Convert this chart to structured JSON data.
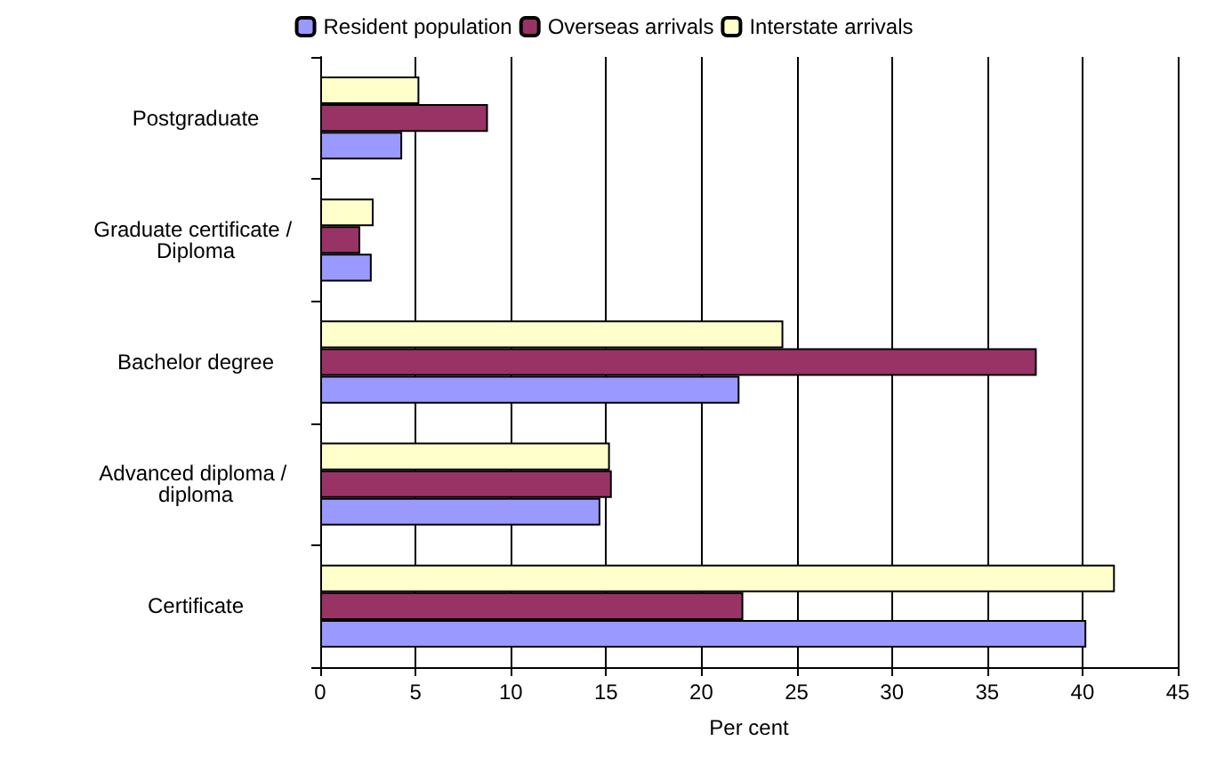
{
  "chart_data": {
    "type": "bar",
    "orientation": "horizontal",
    "xlabel": "Per cent",
    "categories": [
      "Postgraduate",
      "Graduate certificate / Diploma",
      "Bachelor degree",
      "Advanced diploma / diploma",
      "Certificate"
    ],
    "series": [
      {
        "name": "Resident population",
        "color": "#9999ff",
        "values": [
          4.3,
          2.7,
          22.0,
          14.7,
          40.2
        ]
      },
      {
        "name": "Overseas arrivals",
        "color": "#993366",
        "values": [
          8.8,
          2.1,
          37.6,
          15.3,
          22.2
        ]
      },
      {
        "name": "Interstate arrivals",
        "color": "#ffffcc",
        "values": [
          5.2,
          2.8,
          24.3,
          15.2,
          41.7
        ]
      }
    ],
    "xlim": [
      0,
      45
    ],
    "xticks": [
      0,
      5,
      10,
      15,
      20,
      25,
      30,
      35,
      40,
      45
    ],
    "grid": "x",
    "legend": "top"
  }
}
